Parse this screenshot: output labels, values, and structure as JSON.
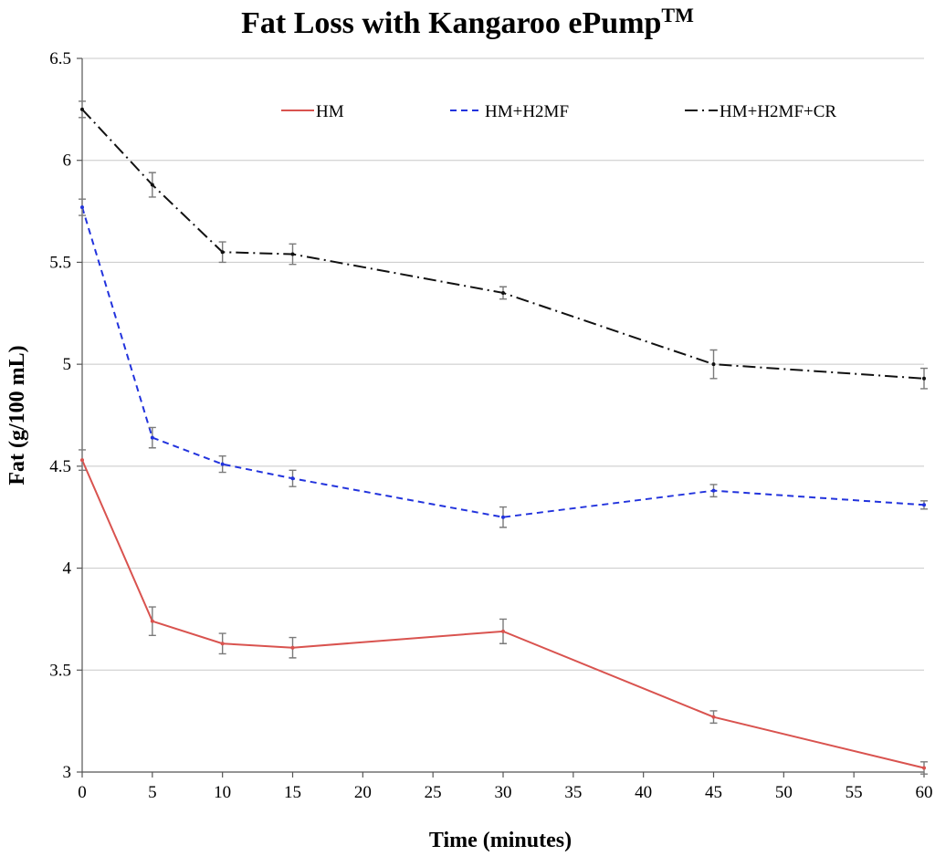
{
  "chart_data": {
    "type": "line",
    "title": "Fat Loss with Kangaroo ePump",
    "title_superscript": "TM",
    "xlabel": "Time (minutes)",
    "ylabel": "Fat (g/100 mL)",
    "xlim": [
      0,
      60
    ],
    "ylim": [
      3,
      6.5
    ],
    "xticks": [
      0,
      5,
      10,
      15,
      20,
      25,
      30,
      35,
      40,
      45,
      50,
      55,
      60
    ],
    "yticks": [
      3,
      3.5,
      4,
      4.5,
      5,
      5.5,
      6,
      6.5
    ],
    "ytick_labels": [
      "3",
      "3.5",
      "4",
      "4.5",
      "5",
      "5.5",
      "6",
      "6.5"
    ],
    "grid": "horizontal",
    "legend_position": "top",
    "x": [
      0,
      5,
      10,
      15,
      30,
      45,
      60
    ],
    "series": [
      {
        "name": "HM",
        "color": "#d9534f",
        "style": "solid",
        "values": [
          4.53,
          3.74,
          3.63,
          3.61,
          3.69,
          3.27,
          3.02
        ],
        "errors": [
          0.05,
          0.07,
          0.05,
          0.05,
          0.06,
          0.03,
          0.03
        ]
      },
      {
        "name": "HM+H2MF",
        "color": "#2233dd",
        "style": "dashed",
        "values": [
          5.77,
          4.64,
          4.51,
          4.44,
          4.25,
          4.38,
          4.31
        ],
        "errors": [
          0.04,
          0.05,
          0.04,
          0.04,
          0.05,
          0.03,
          0.02
        ]
      },
      {
        "name": "HM+H2MF+CR",
        "color": "#111111",
        "style": "dashdot",
        "values": [
          6.25,
          5.88,
          5.55,
          5.54,
          5.35,
          5.0,
          4.93
        ],
        "errors": [
          0.04,
          0.06,
          0.05,
          0.05,
          0.03,
          0.07,
          0.05
        ]
      }
    ]
  }
}
